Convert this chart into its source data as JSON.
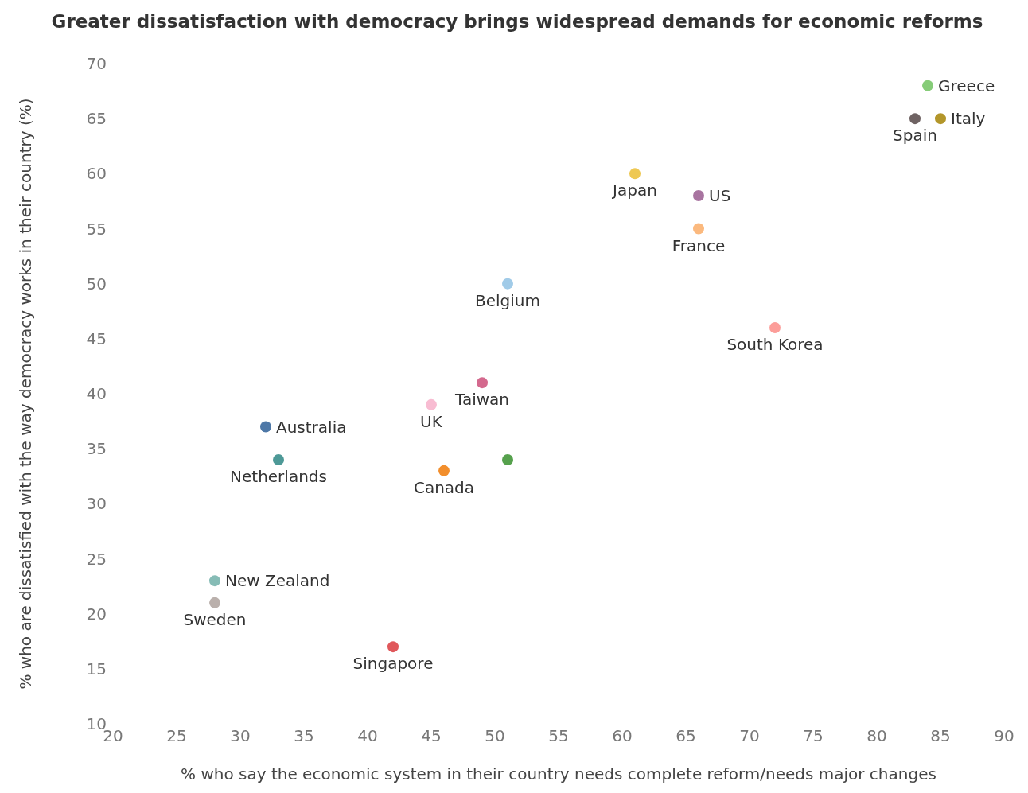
{
  "chart_data": {
    "type": "scatter",
    "title": "Greater dissatisfaction with democracy brings widespread demands for economic reforms",
    "xlabel": "% who say the economic system in their country needs complete reform/needs major changes",
    "ylabel": "% who are dissatisfied with the way democracy works in their country (%)",
    "x": [
      84,
      85,
      83,
      61,
      66,
      66,
      51,
      72,
      49,
      45,
      32,
      33,
      51,
      46,
      28,
      28,
      42
    ],
    "values": [
      68,
      65,
      65,
      60,
      58,
      55,
      50,
      46,
      41,
      39,
      37,
      34,
      34,
      33,
      23,
      21,
      17
    ],
    "colors": [
      "#86cc78",
      "#b3962a",
      "#6f6363",
      "#eec853",
      "#a874a0",
      "#fbb97e",
      "#a1cbe8",
      "#fc9d99",
      "#d4698e",
      "#f8bcd2",
      "#4e78a7",
      "#4d9997",
      "#56a14d",
      "#f28e2c",
      "#86bcb6",
      "#bab0ac",
      "#e0585b"
    ],
    "annotations": [
      {
        "text": "Greece",
        "x": 84,
        "y": 68
      },
      {
        "text": "Italy",
        "x": 85,
        "y": 65
      },
      {
        "text": "Spain",
        "x": 83,
        "y": 65
      },
      {
        "text": "Japan",
        "x": 61,
        "y": 60
      },
      {
        "text": "US",
        "x": 66,
        "y": 58
      },
      {
        "text": "France",
        "x": 66,
        "y": 55
      },
      {
        "text": "Belgium",
        "x": 51,
        "y": 50
      },
      {
        "text": "South Korea",
        "x": 72,
        "y": 46
      },
      {
        "text": "Taiwan",
        "x": 49,
        "y": 41
      },
      {
        "text": "UK",
        "x": 45,
        "y": 39
      },
      {
        "text": "Australia",
        "x": 32,
        "y": 37
      },
      {
        "text": "Netherlands",
        "x": 33,
        "y": 34
      },
      {
        "text": "Canada",
        "x": 46,
        "y": 33
      },
      {
        "text": "New Zealand",
        "x": 28,
        "y": 23
      },
      {
        "text": "Sweden",
        "x": 28,
        "y": 21
      },
      {
        "text": "Singapore",
        "x": 42,
        "y": 17
      }
    ],
    "xlim": [
      20,
      90
    ],
    "xticks": [
      20,
      25,
      30,
      35,
      40,
      45,
      50,
      55,
      60,
      65,
      70,
      75,
      80,
      85,
      90
    ],
    "ylim": [
      10,
      70
    ],
    "yticks": [
      10,
      15,
      20,
      25,
      30,
      35,
      40,
      45,
      50,
      55,
      60,
      65,
      70
    ],
    "grid": false,
    "legend": false,
    "marker": "circle"
  }
}
